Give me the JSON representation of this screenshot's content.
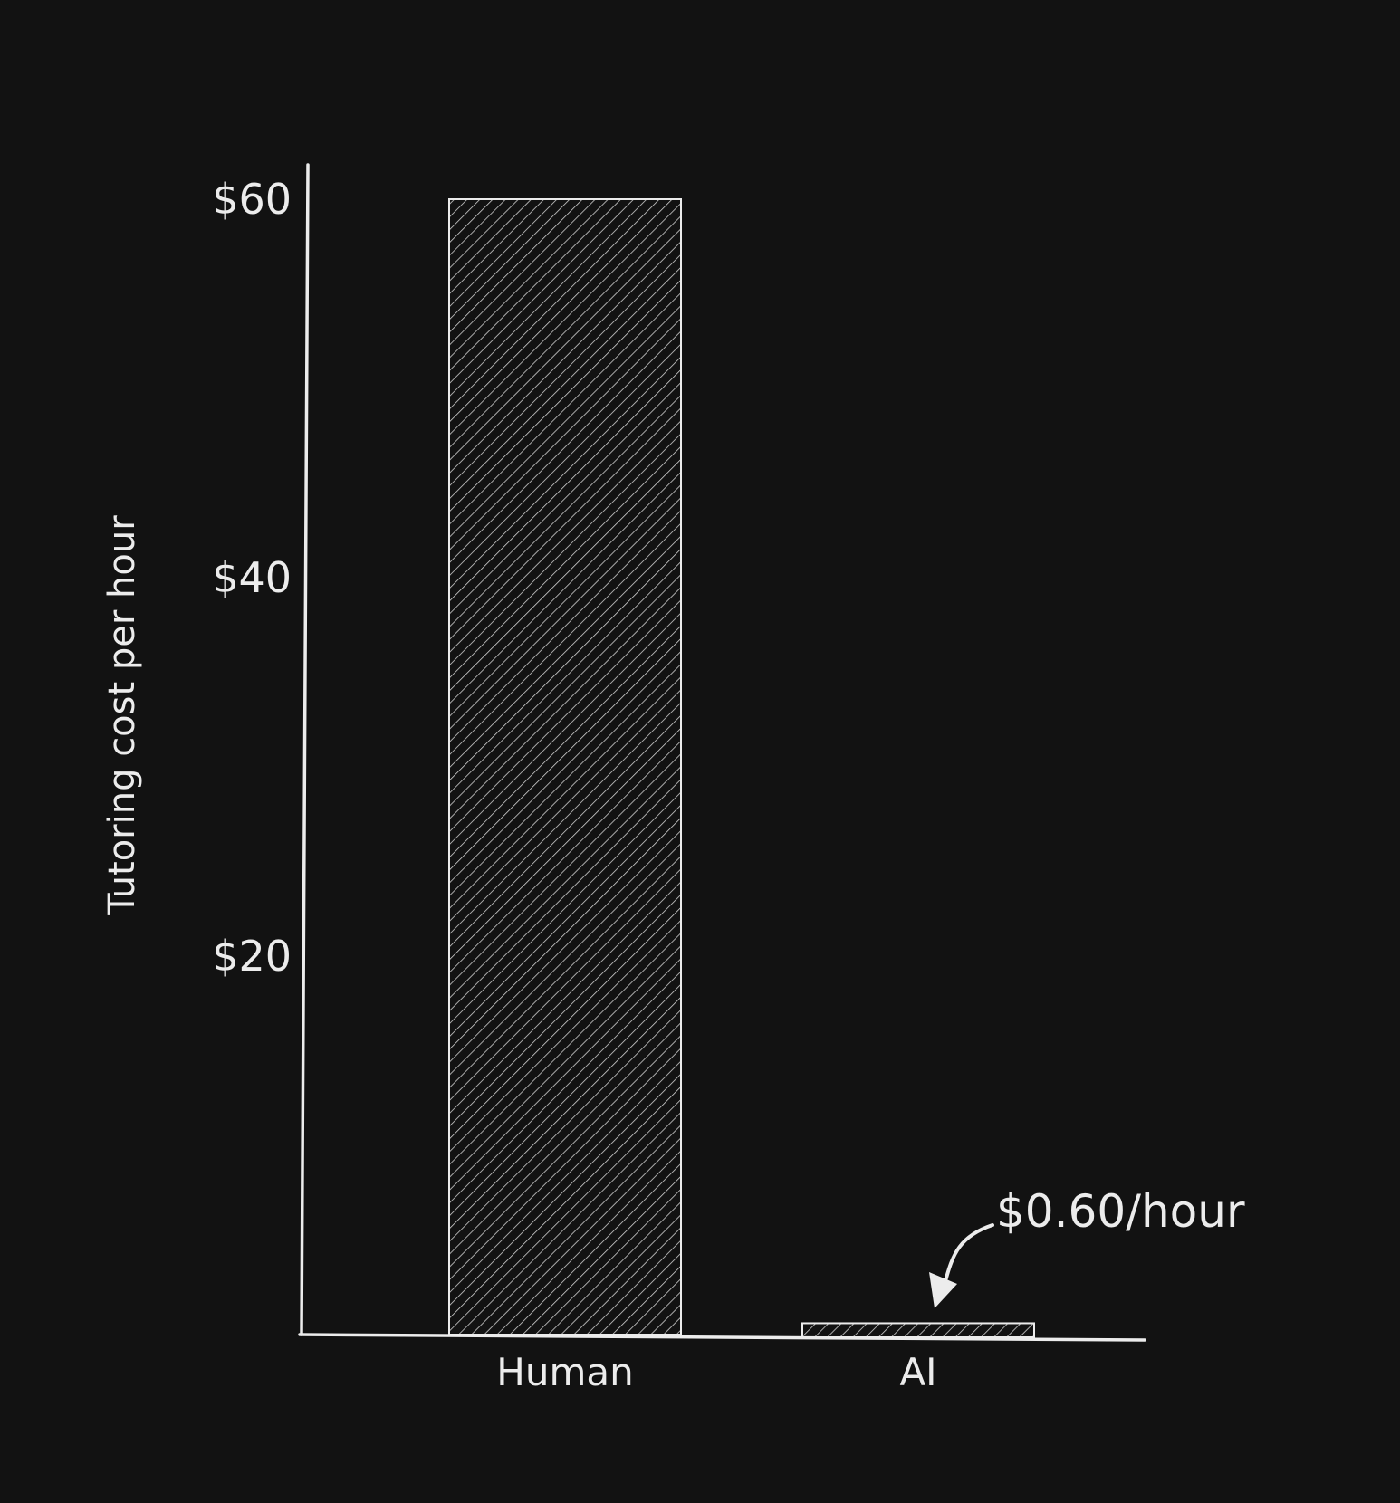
{
  "chart_data": {
    "type": "bar",
    "categories": [
      "Human",
      "AI"
    ],
    "values": [
      60,
      0.6
    ],
    "ylabel": "Tutoring cost per hour",
    "xlabel": "",
    "yticks": [
      20,
      40,
      60
    ],
    "ytick_labels": [
      "$20",
      "$40",
      "$60"
    ],
    "ylim": [
      0,
      60
    ],
    "grid": false,
    "bar_fill": "diagonal-hatch",
    "annotation": {
      "text": "$0.60/hour",
      "target": "AI"
    },
    "colors": {
      "background": "#121212",
      "ink": "#ececec"
    }
  }
}
